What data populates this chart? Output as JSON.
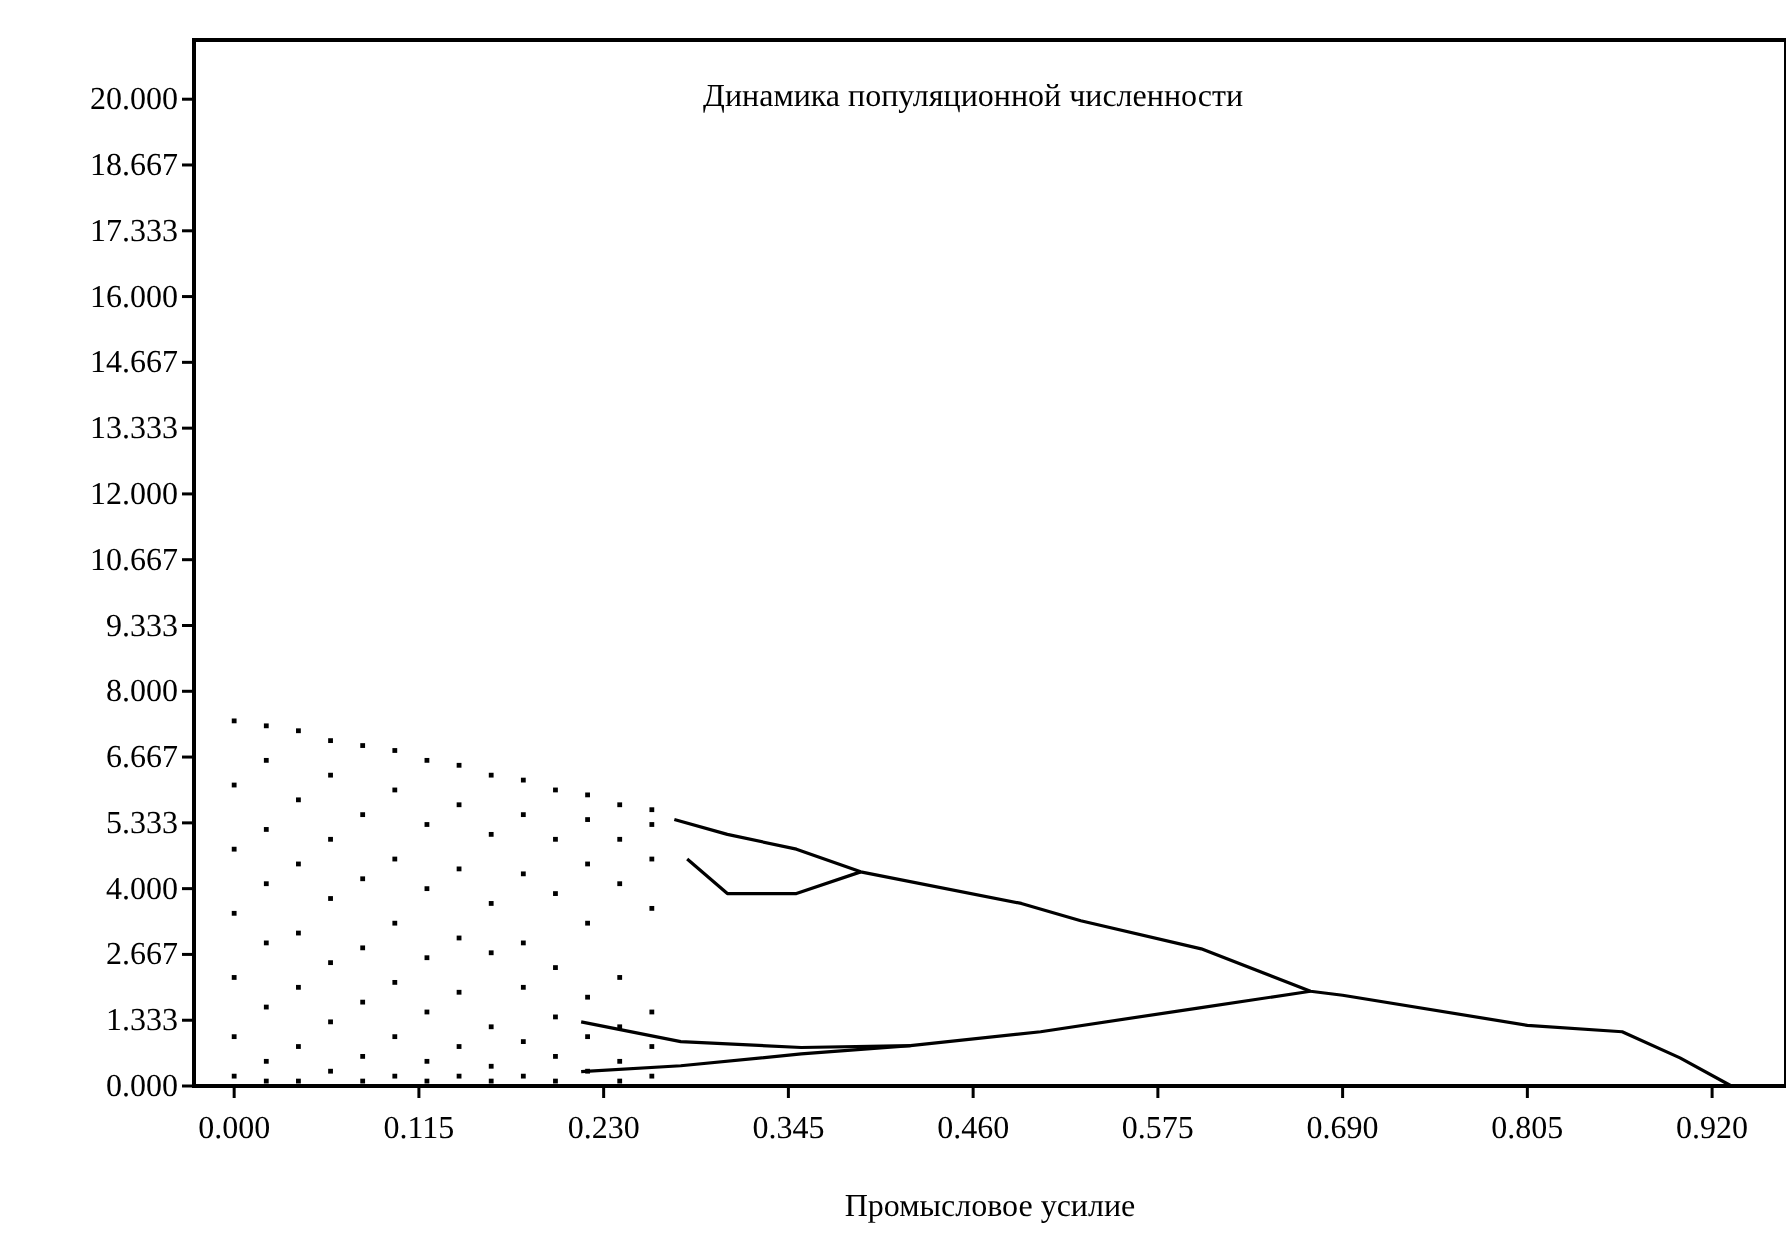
{
  "chart_data": {
    "type": "scatter",
    "title": "Динамика популяционной численности",
    "xlabel": "Промысловое усилие",
    "xlim": [
      -0.025,
      0.966
    ],
    "ylim": [
      0,
      21.2
    ],
    "xticks": [
      {
        "value": 0,
        "label": "0.000"
      },
      {
        "value": 0.115,
        "label": "0.115"
      },
      {
        "value": 0.23,
        "label": "0.230"
      },
      {
        "value": 0.345,
        "label": "0.345"
      },
      {
        "value": 0.46,
        "label": "0.460"
      },
      {
        "value": 0.575,
        "label": "0.575"
      },
      {
        "value": 0.69,
        "label": "0.690"
      },
      {
        "value": 0.805,
        "label": "0.805"
      },
      {
        "value": 0.92,
        "label": "0.920"
      }
    ],
    "yticks": [
      {
        "value": 0,
        "label": "0.000"
      },
      {
        "value": 1.333,
        "label": "1.333"
      },
      {
        "value": 2.667,
        "label": "2.667"
      },
      {
        "value": 4,
        "label": "4.000"
      },
      {
        "value": 5.333,
        "label": "5.333"
      },
      {
        "value": 6.667,
        "label": "6.667"
      },
      {
        "value": 8,
        "label": "8.000"
      },
      {
        "value": 9.333,
        "label": "9.333"
      },
      {
        "value": 10.667,
        "label": "10.667"
      },
      {
        "value": 12,
        "label": "12.000"
      },
      {
        "value": 13.333,
        "label": "13.333"
      },
      {
        "value": 14.667,
        "label": "14.667"
      },
      {
        "value": 16,
        "label": "16.000"
      },
      {
        "value": 17.333,
        "label": "17.333"
      },
      {
        "value": 18.667,
        "label": "18.667"
      },
      {
        "value": 20,
        "label": "20.000"
      }
    ],
    "grid": false,
    "series": [
      {
        "marker": "square",
        "color": "#000000",
        "x": [
          0,
          0,
          0,
          0,
          0,
          0,
          0,
          0.02,
          0.02,
          0.02,
          0.02,
          0.02,
          0.02,
          0.02,
          0.02,
          0.04,
          0.04,
          0.04,
          0.04,
          0.04,
          0.04,
          0.04,
          0.06,
          0.06,
          0.06,
          0.06,
          0.06,
          0.06,
          0.06,
          0.08,
          0.08,
          0.08,
          0.08,
          0.08,
          0.08,
          0.08,
          0.1,
          0.1,
          0.1,
          0.1,
          0.1,
          0.1,
          0.1,
          0.12,
          0.12,
          0.12,
          0.12,
          0.12,
          0.12,
          0.12,
          0.14,
          0.14,
          0.14,
          0.14,
          0.14,
          0.14,
          0.14,
          0.16,
          0.16,
          0.16,
          0.16,
          0.16,
          0.16,
          0.16,
          0.18,
          0.18,
          0.18,
          0.18,
          0.18,
          0.18,
          0.18,
          0.2,
          0.2,
          0.2,
          0.2,
          0.2,
          0.2,
          0.2,
          0.22,
          0.22,
          0.22,
          0.22,
          0.22,
          0.22,
          0.22,
          0.24,
          0.24,
          0.24,
          0.24,
          0.24,
          0.24,
          0.24,
          0.26,
          0.26,
          0.26,
          0.26,
          0.26,
          0.26,
          0.26
        ],
        "values": [
          7.4,
          6.1,
          4.8,
          3.5,
          2.2,
          1.0,
          0.2,
          7.3,
          6.6,
          5.2,
          4.1,
          2.9,
          1.6,
          0.5,
          0.1,
          7.2,
          5.8,
          4.5,
          3.1,
          2.0,
          0.8,
          0.1,
          7.0,
          6.3,
          5.0,
          3.8,
          2.5,
          1.3,
          0.3,
          6.9,
          5.5,
          4.2,
          2.8,
          1.7,
          0.6,
          0.1,
          6.8,
          6.0,
          4.6,
          3.3,
          2.1,
          1.0,
          0.2,
          6.6,
          5.3,
          4.0,
          2.6,
          1.5,
          0.5,
          0.1,
          6.5,
          5.7,
          4.4,
          3.0,
          1.9,
          0.8,
          0.2,
          6.3,
          5.1,
          3.7,
          2.7,
          1.2,
          0.4,
          0.1,
          6.2,
          5.5,
          4.3,
          2.9,
          2.0,
          0.9,
          0.2,
          6.0,
          5.0,
          3.9,
          2.4,
          1.4,
          0.6,
          0.1,
          5.9,
          5.4,
          4.5,
          3.3,
          1.8,
          1.0,
          0.3,
          5.7,
          5.0,
          4.1,
          2.2,
          1.2,
          0.5,
          0.1,
          5.6,
          5.3,
          4.6,
          3.6,
          1.5,
          0.8,
          0.2
        ]
      },
      {
        "type": "line",
        "marker": "none",
        "color": "#000000",
        "x": [
          0.274,
          0.307,
          0.35,
          0.39,
          0.49,
          0.527,
          0.602,
          0.67,
          0.69,
          0.805,
          0.864,
          0.9,
          0.932
        ],
        "values": [
          5.4,
          5.1,
          4.8,
          4.34,
          3.7,
          3.35,
          2.78,
          1.92,
          1.84,
          1.23,
          1.1,
          0.57,
          0
        ]
      },
      {
        "type": "line",
        "marker": "none",
        "color": "#000000",
        "x": [
          0.282,
          0.307,
          0.35,
          0.39
        ],
        "values": [
          4.6,
          3.9,
          3.9,
          4.34
        ]
      },
      {
        "type": "line",
        "marker": "none",
        "color": "#000000",
        "x": [
          0.216,
          0.278,
          0.353,
          0.421,
          0.502,
          0.602,
          0.67
        ],
        "values": [
          1.3,
          0.9,
          0.78,
          0.82,
          1.1,
          1.59,
          1.92
        ]
      },
      {
        "type": "line",
        "marker": "none",
        "color": "#000000",
        "x": [
          0.216,
          0.278,
          0.353,
          0.421
        ],
        "values": [
          0.29,
          0.41,
          0.65,
          0.82
        ]
      }
    ]
  }
}
